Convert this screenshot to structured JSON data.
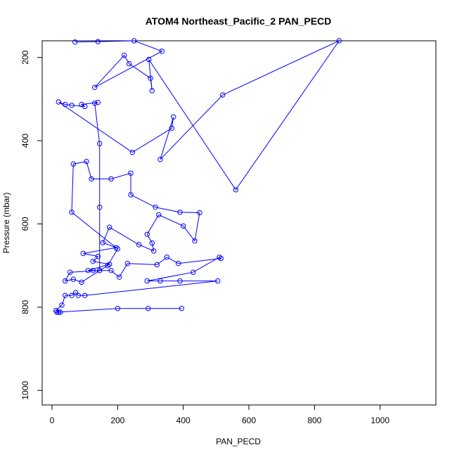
{
  "chart_data": {
    "type": "line",
    "title": "ATOM4 Northeast_Pacific_2 PAN_PECD",
    "xlabel": "PAN_PECD",
    "ylabel": "Pressure (mbar)",
    "xlim": [
      -30,
      1170
    ],
    "ylim": [
      1035,
      160
    ],
    "y_reversed": true,
    "x_ticks": [
      0,
      200,
      400,
      600,
      800,
      1000
    ],
    "y_ticks": [
      200,
      400,
      600,
      800,
      1000
    ],
    "grid": false,
    "legend": "none",
    "color": "#0000ff",
    "series": [
      {
        "points": [
          [
            395,
            803
          ],
          [
            293,
            803
          ],
          [
            200,
            803
          ],
          [
            20,
            812
          ],
          [
            15,
            812
          ],
          [
            25,
            812
          ],
          [
            12,
            808
          ],
          [
            30,
            795
          ],
          [
            40,
            772
          ],
          [
            60,
            772
          ],
          [
            72,
            765
          ],
          [
            80,
            772
          ],
          [
            100,
            772
          ],
          [
            505,
            737
          ],
          [
            390,
            737
          ],
          [
            330,
            737
          ],
          [
            290,
            737
          ],
          [
            430,
            716
          ],
          [
            510,
            680
          ],
          [
            515,
            683
          ],
          [
            385,
            695
          ],
          [
            350,
            680
          ],
          [
            320,
            698
          ],
          [
            230,
            695
          ],
          [
            205,
            728
          ],
          [
            180,
            712
          ],
          [
            125,
            712
          ],
          [
            110,
            712
          ],
          [
            175,
            697
          ],
          [
            125,
            690
          ],
          [
            140,
            678
          ],
          [
            95,
            671
          ],
          [
            195,
            657
          ],
          [
            155,
            645
          ],
          [
            175,
            608
          ],
          [
            265,
            650
          ],
          [
            310,
            665
          ],
          [
            305,
            646
          ],
          [
            290,
            625
          ],
          [
            325,
            578
          ],
          [
            400,
            605
          ],
          [
            435,
            641
          ],
          [
            450,
            573
          ],
          [
            390,
            572
          ],
          [
            315,
            560
          ],
          [
            240,
            530
          ],
          [
            240,
            478
          ],
          [
            180,
            492
          ],
          [
            120,
            492
          ],
          [
            105,
            450
          ],
          [
            65,
            456
          ],
          [
            60,
            572
          ],
          [
            200,
            660
          ],
          [
            170,
            700
          ],
          [
            145,
            712
          ],
          [
            55,
            716
          ],
          [
            40,
            737
          ],
          [
            65,
            733
          ],
          [
            90,
            740
          ],
          [
            145,
            712
          ],
          [
            145,
            560
          ],
          [
            145,
            407
          ],
          [
            130,
            310
          ],
          [
            140,
            308
          ],
          [
            90,
            313
          ],
          [
            100,
            318
          ],
          [
            60,
            315
          ],
          [
            40,
            313
          ],
          [
            20,
            307
          ],
          [
            245,
            428
          ],
          [
            365,
            370
          ],
          [
            370,
            343
          ],
          [
            330,
            445
          ],
          [
            520,
            290
          ],
          [
            875,
            160
          ],
          [
            560,
            518
          ],
          [
            295,
            205
          ],
          [
            305,
            280
          ],
          [
            300,
            250
          ],
          [
            235,
            215
          ],
          [
            220,
            195
          ],
          [
            130,
            272
          ],
          [
            335,
            185
          ],
          [
            250,
            160
          ],
          [
            140,
            162
          ],
          [
            70,
            163
          ]
        ]
      }
    ]
  }
}
